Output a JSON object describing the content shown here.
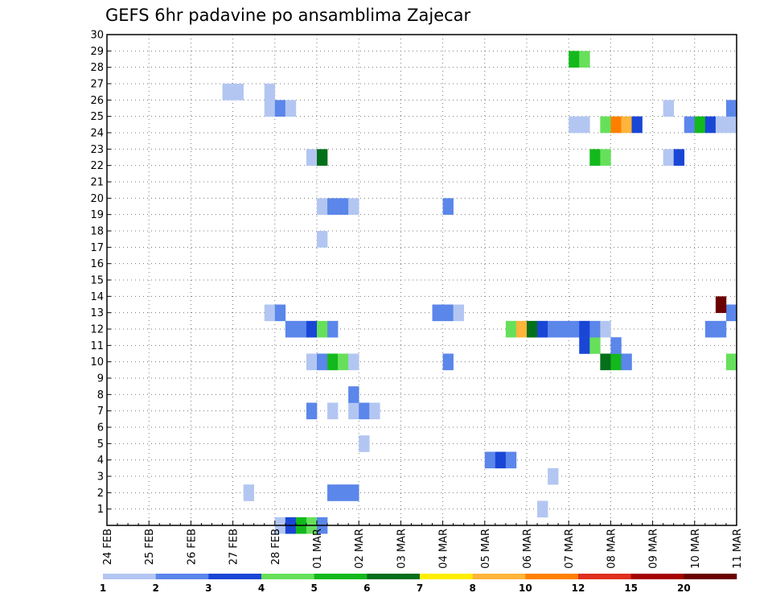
{
  "chart_data": {
    "type": "heatmap",
    "title": "GEFS 6hr padavine po ansamblima Zajecar",
    "xlabel": "",
    "ylabel": "",
    "y_ticks": [
      1,
      2,
      3,
      4,
      5,
      6,
      7,
      8,
      9,
      10,
      11,
      12,
      13,
      14,
      15,
      16,
      17,
      18,
      19,
      20,
      21,
      22,
      23,
      24,
      25,
      26,
      27,
      28,
      29,
      30
    ],
    "ylim": [
      0,
      30
    ],
    "x_tick_labels": [
      "24 FEB",
      "25 FEB",
      "26 FEB",
      "27 FEB",
      "28 FEB",
      "01 MAR",
      "02 MAR",
      "03 MAR",
      "04 MAR",
      "05 MAR",
      "06 MAR",
      "07 MAR",
      "08 MAR",
      "09 MAR",
      "10 MAR",
      "11 MAR"
    ],
    "x_steps_per_day": 4,
    "x_total_steps": 60,
    "grid": true,
    "colorbar": {
      "labels": [
        "1",
        "2",
        "3",
        "4",
        "5",
        "6",
        "7",
        "8",
        "10",
        "12",
        "15",
        "20"
      ],
      "colors": [
        "#b3c6f2",
        "#5b86ea",
        "#1a46d6",
        "#66e05a",
        "#13b81d",
        "#04701a",
        "#ffee00",
        "#ffb43a",
        "#ff8000",
        "#e0301e",
        "#a60000",
        "#6a0000"
      ]
    },
    "cells": [
      {
        "t": 16,
        "m": 0,
        "l": 1
      },
      {
        "t": 17,
        "m": 0,
        "l": 3
      },
      {
        "t": 18,
        "m": 0,
        "l": 5
      },
      {
        "t": 19,
        "m": 0,
        "l": 4
      },
      {
        "t": 20,
        "m": 0,
        "l": 2
      },
      {
        "t": 13,
        "m": 2,
        "l": 1
      },
      {
        "t": 21,
        "m": 2,
        "l": 2
      },
      {
        "t": 22,
        "m": 2,
        "l": 2
      },
      {
        "t": 23,
        "m": 2,
        "l": 2
      },
      {
        "t": 36,
        "m": 4,
        "l": 2
      },
      {
        "t": 37,
        "m": 4,
        "l": 3
      },
      {
        "t": 38,
        "m": 4,
        "l": 2
      },
      {
        "t": 41,
        "m": 1,
        "l": 1
      },
      {
        "t": 42,
        "m": 3,
        "l": 1
      },
      {
        "t": 24,
        "m": 5,
        "l": 1
      },
      {
        "t": 19,
        "m": 7,
        "l": 2
      },
      {
        "t": 21,
        "m": 7,
        "l": 1
      },
      {
        "t": 23,
        "m": 7,
        "l": 1
      },
      {
        "t": 24,
        "m": 7,
        "l": 2
      },
      {
        "t": 25,
        "m": 7,
        "l": 1
      },
      {
        "t": 23,
        "m": 8,
        "l": 2
      },
      {
        "t": 19,
        "m": 10,
        "l": 1
      },
      {
        "t": 20,
        "m": 10,
        "l": 2
      },
      {
        "t": 21,
        "m": 10,
        "l": 5
      },
      {
        "t": 22,
        "m": 10,
        "l": 4
      },
      {
        "t": 23,
        "m": 10,
        "l": 1
      },
      {
        "t": 32,
        "m": 10,
        "l": 2
      },
      {
        "t": 47,
        "m": 10,
        "l": 6
      },
      {
        "t": 48,
        "m": 10,
        "l": 5
      },
      {
        "t": 49,
        "m": 10,
        "l": 2
      },
      {
        "t": 59,
        "m": 10,
        "l": 4
      },
      {
        "t": 45,
        "m": 11,
        "l": 3
      },
      {
        "t": 46,
        "m": 11,
        "l": 4
      },
      {
        "t": 48,
        "m": 11,
        "l": 2
      },
      {
        "t": 17,
        "m": 12,
        "l": 2
      },
      {
        "t": 18,
        "m": 12,
        "l": 2
      },
      {
        "t": 19,
        "m": 12,
        "l": 3
      },
      {
        "t": 20,
        "m": 12,
        "l": 4
      },
      {
        "t": 21,
        "m": 12,
        "l": 2
      },
      {
        "t": 38,
        "m": 12,
        "l": 4
      },
      {
        "t": 39,
        "m": 12,
        "l": 8
      },
      {
        "t": 40,
        "m": 12,
        "l": 6
      },
      {
        "t": 41,
        "m": 12,
        "l": 3
      },
      {
        "t": 42,
        "m": 12,
        "l": 2
      },
      {
        "t": 43,
        "m": 12,
        "l": 2
      },
      {
        "t": 44,
        "m": 12,
        "l": 2
      },
      {
        "t": 45,
        "m": 12,
        "l": 3
      },
      {
        "t": 46,
        "m": 12,
        "l": 2
      },
      {
        "t": 47,
        "m": 12,
        "l": 1
      },
      {
        "t": 57,
        "m": 12,
        "l": 2
      },
      {
        "t": 58,
        "m": 12,
        "l": 2
      },
      {
        "t": 15,
        "m": 13,
        "l": 1
      },
      {
        "t": 16,
        "m": 13,
        "l": 2
      },
      {
        "t": 31,
        "m": 13,
        "l": 2
      },
      {
        "t": 32,
        "m": 13,
        "l": 2
      },
      {
        "t": 33,
        "m": 13,
        "l": 1
      },
      {
        "t": 59,
        "m": 13,
        "l": 2
      },
      {
        "t": 58,
        "m": 13.5,
        "l": 12
      },
      {
        "t": 20,
        "m": 17.5,
        "l": 1
      },
      {
        "t": 20,
        "m": 19.5,
        "l": 1
      },
      {
        "t": 21,
        "m": 19.5,
        "l": 2
      },
      {
        "t": 22,
        "m": 19.5,
        "l": 2
      },
      {
        "t": 23,
        "m": 19.5,
        "l": 1
      },
      {
        "t": 32,
        "m": 19.5,
        "l": 2
      },
      {
        "t": 19,
        "m": 22.5,
        "l": 1
      },
      {
        "t": 20,
        "m": 22.5,
        "l": 6
      },
      {
        "t": 46,
        "m": 22.5,
        "l": 5
      },
      {
        "t": 47,
        "m": 22.5,
        "l": 4
      },
      {
        "t": 53,
        "m": 22.5,
        "l": 1
      },
      {
        "t": 54,
        "m": 22.5,
        "l": 3
      },
      {
        "t": 44,
        "m": 24.5,
        "l": 1
      },
      {
        "t": 45,
        "m": 24.5,
        "l": 1
      },
      {
        "t": 47,
        "m": 24.5,
        "l": 4
      },
      {
        "t": 48,
        "m": 24.5,
        "l": 9
      },
      {
        "t": 49,
        "m": 24.5,
        "l": 8
      },
      {
        "t": 50,
        "m": 24.5,
        "l": 3
      },
      {
        "t": 55,
        "m": 24.5,
        "l": 2
      },
      {
        "t": 56,
        "m": 24.5,
        "l": 5
      },
      {
        "t": 57,
        "m": 24.5,
        "l": 3
      },
      {
        "t": 58,
        "m": 24.5,
        "l": 1
      },
      {
        "t": 59,
        "m": 24.5,
        "l": 1
      },
      {
        "t": 59,
        "m": 25.5,
        "l": 2
      },
      {
        "t": 15,
        "m": 25.5,
        "l": 1
      },
      {
        "t": 16,
        "m": 25.5,
        "l": 2
      },
      {
        "t": 17,
        "m": 25.5,
        "l": 1
      },
      {
        "t": 53,
        "m": 25.5,
        "l": 1
      },
      {
        "t": 15,
        "m": 26.5,
        "l": 1
      },
      {
        "t": 11,
        "m": 26.5,
        "l": 1
      },
      {
        "t": 12,
        "m": 26.5,
        "l": 1
      },
      {
        "t": 44,
        "m": 28.5,
        "l": 5
      },
      {
        "t": 45,
        "m": 28.5,
        "l": 4
      }
    ]
  }
}
